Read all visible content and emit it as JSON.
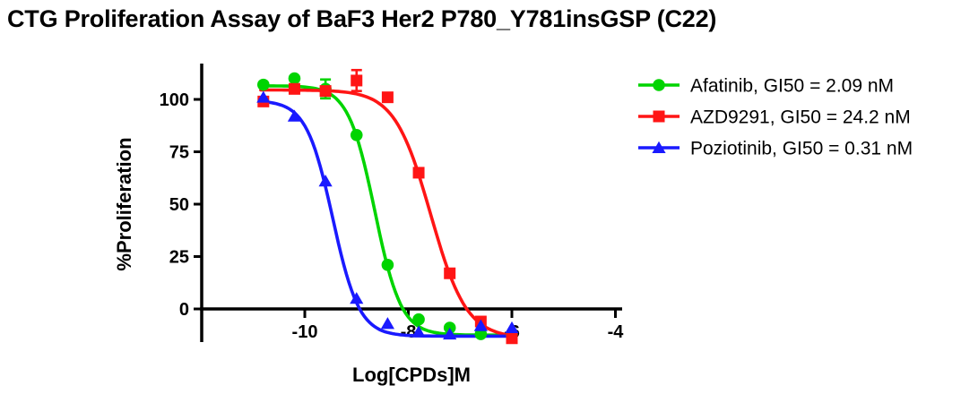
{
  "title": "CTG Proliferation Assay of BaF3 Her2 P780_Y781insGSP (C22)",
  "chart_data": {
    "type": "scatter",
    "subtype": "dose-response-curves",
    "title": "CTG Proliferation Assay of BaF3 Her2 P780_Y781insGSP (C22)",
    "xlabel": "Log[CPDs]M",
    "ylabel": "%Proliferation",
    "x_ticks": [
      -10,
      -8,
      -6,
      -4
    ],
    "y_ticks": [
      0,
      25,
      50,
      75,
      100
    ],
    "xlim": [
      -12,
      -3.85
    ],
    "ylim": [
      -16,
      117
    ],
    "grid": false,
    "legend_position": "right-top",
    "x": [
      -10.8,
      -10.2,
      -9.6,
      -9.0,
      -8.4,
      -7.8,
      -7.2,
      -6.6,
      -6.0
    ],
    "series": [
      {
        "name": "Afatinib",
        "legend_label": "Afatinib, GI50 = 2.09 nM",
        "gi50_nM": 2.09,
        "color": "#00d400",
        "marker": "circle",
        "y": [
          107,
          110,
          105,
          83,
          21,
          -5,
          -9,
          -12,
          -12
        ],
        "y_err": [
          0,
          0,
          4.5,
          0,
          0,
          0,
          0,
          0,
          0
        ],
        "curve_fit": {
          "top": 106.5,
          "bottom": -12.5,
          "log_gi50": -8.65,
          "hill": 1.7
        }
      },
      {
        "name": "AZD9291",
        "legend_label": "AZD9291, GI50 = 24.2 nM",
        "gi50_nM": 24.2,
        "color": "#ff1515",
        "marker": "square",
        "y": [
          99,
          105,
          104,
          109,
          101,
          65,
          17,
          -6,
          -14
        ],
        "y_err": [
          0,
          0,
          0,
          5,
          0,
          0,
          0,
          0,
          0
        ],
        "curve_fit": {
          "top": 104.5,
          "bottom": -14,
          "log_gi50": -7.57,
          "hill": 1.25
        }
      },
      {
        "name": "Poziotinib",
        "legend_label": "Poziotinib, GI50 = 0.31 nM",
        "gi50_nM": 0.31,
        "color": "#1a1aff",
        "marker": "triangle",
        "y": [
          101,
          92,
          61,
          5,
          -7,
          -11,
          -12,
          -8,
          -9
        ],
        "y_err": [
          0,
          0,
          0,
          0,
          0,
          0,
          0,
          0,
          0
        ],
        "curve_fit": {
          "top": 99.5,
          "bottom": -13,
          "log_gi50": -9.46,
          "hill": 1.7
        }
      }
    ]
  }
}
